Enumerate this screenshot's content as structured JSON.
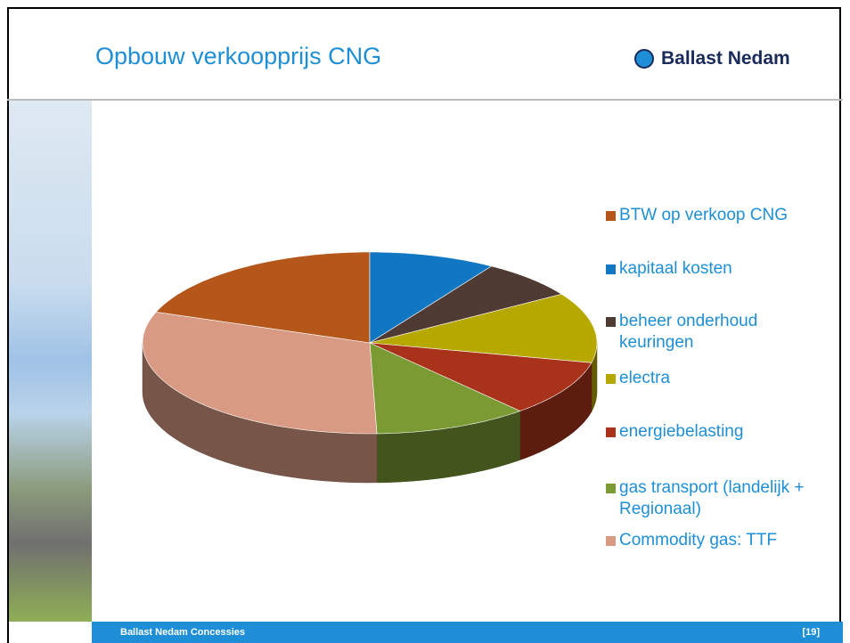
{
  "slide": {
    "title": "Opbouw verkoopprijs CNG",
    "logo": "Ballast Nedam",
    "footer": "Ballast Nedam Concessies",
    "page": "[19]"
  },
  "chart_data": {
    "type": "pie",
    "categories": [
      "BTW op verkoop CNG",
      "kapitaal kosten",
      "beheer onderhoud keuringen",
      "electra",
      "energiebelasting",
      "gas transport (landelijk + Regionaal)",
      "Commodity gas: TTF"
    ],
    "values": [
      19.5,
      9,
      7,
      12.5,
      10,
      11,
      31
    ],
    "colors": [
      "#b5561a",
      "#1277c2",
      "#4f3b33",
      "#b7a800",
      "#a8321a",
      "#7a9a33",
      "#d99a84"
    ],
    "legend": "right",
    "three_d": true
  }
}
